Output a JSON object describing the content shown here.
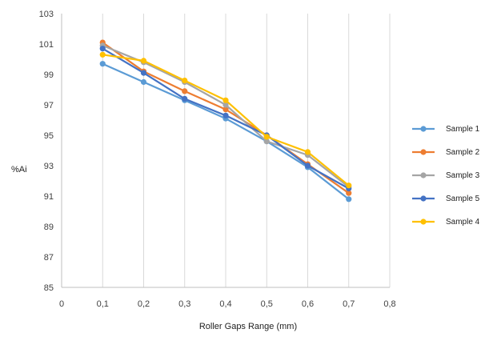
{
  "chart_data": {
    "type": "line",
    "title": "",
    "xlabel": "Roller Gaps Range (mm)",
    "ylabel": "%Ai",
    "xlim": [
      0,
      0.8
    ],
    "ylim": [
      85,
      103
    ],
    "x_ticks": [
      "0",
      "0,1",
      "0,2",
      "0,3",
      "0,4",
      "0,5",
      "0,6",
      "0,7",
      "0,8"
    ],
    "y_ticks": [
      "85",
      "87",
      "89",
      "91",
      "93",
      "95",
      "97",
      "99",
      "101",
      "103"
    ],
    "grid": "vertical",
    "legend_position": "right",
    "x": [
      0.1,
      0.2,
      0.3,
      0.4,
      0.5,
      0.6,
      0.7
    ],
    "series": [
      {
        "name": "Sample 1",
        "color": "#5B9BD5",
        "values": [
          99.7,
          98.5,
          97.3,
          96.1,
          94.6,
          92.9,
          90.8
        ]
      },
      {
        "name": "Sample 2",
        "color": "#ED7D31",
        "values": [
          101.1,
          99.2,
          97.9,
          96.7,
          95.0,
          93.1,
          91.2
        ]
      },
      {
        "name": "Sample 3",
        "color": "#A5A5A5",
        "values": [
          100.9,
          99.8,
          98.5,
          97.0,
          94.6,
          93.7,
          91.6
        ]
      },
      {
        "name": "Sample 5",
        "color": "#4472C4",
        "values": [
          100.7,
          99.1,
          97.4,
          96.3,
          95.0,
          93.0,
          91.5
        ]
      },
      {
        "name": "Sample 4",
        "color": "#FFC000",
        "values": [
          100.3,
          99.9,
          98.6,
          97.3,
          94.9,
          93.9,
          91.7
        ]
      }
    ]
  }
}
